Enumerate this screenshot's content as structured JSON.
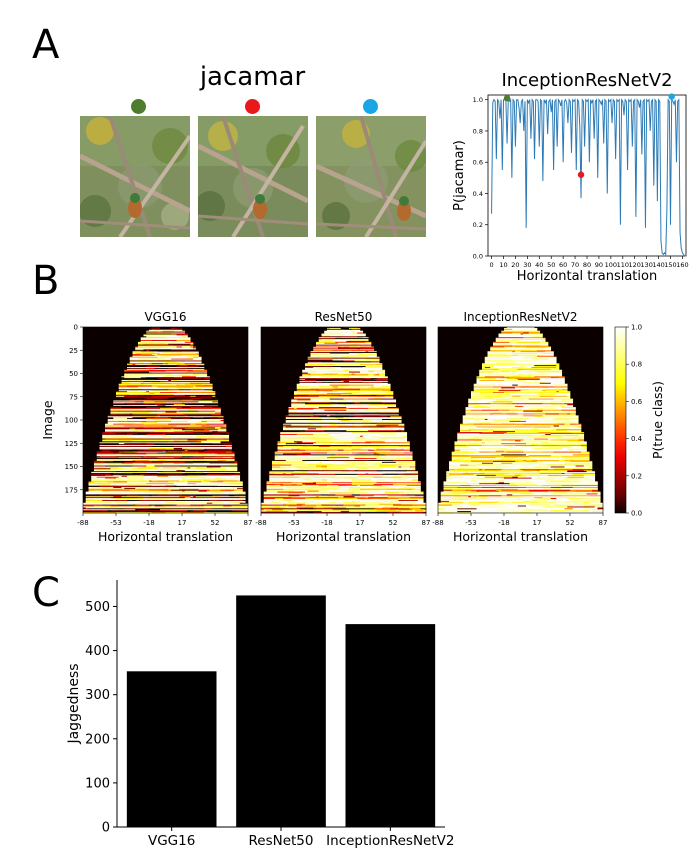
{
  "panels": {
    "a": "A",
    "b": "B",
    "c": "C"
  },
  "panel_a": {
    "image_title": "jacamar",
    "dot_colors": [
      "#4e7d2f",
      "#e8181c",
      "#1aa6e4"
    ]
  },
  "colors": {
    "line": "#2c7bb6",
    "bar": "#000000",
    "background_heatmap": "#0b0000"
  },
  "chart_data": [
    {
      "type": "line",
      "title": "InceptionResNetV2",
      "xlabel": "Horizontal translation",
      "ylabel": "P(jacamar)",
      "xlim": [
        -3,
        163
      ],
      "ylim": [
        0,
        1.03
      ],
      "xticks": [
        0,
        10,
        20,
        30,
        40,
        50,
        60,
        70,
        80,
        90,
        100,
        110,
        120,
        130,
        140,
        150,
        160
      ],
      "yticks": [
        0.0,
        0.2,
        0.4,
        0.6,
        0.8,
        1.0
      ],
      "series": [
        {
          "values": [
            0.27,
            0.98,
            1.0,
            0.99,
            0.62,
            1.0,
            0.99,
            0.88,
            1.0,
            0.55,
            1.0,
            1.0,
            0.99,
            0.72,
            1.0,
            0.99,
            1.0,
            0.5,
            1.0,
            0.99,
            0.7,
            1.0,
            1.0,
            0.95,
            0.85,
            0.99,
            1.0,
            0.8,
            0.99,
            0.18,
            1.0,
            0.98,
            1.0,
            0.75,
            1.0,
            0.99,
            0.62,
            1.0,
            1.0,
            0.99,
            0.7,
            1.0,
            0.99,
            0.48,
            1.0,
            0.98,
            1.0,
            0.78,
            0.99,
            1.0,
            0.92,
            1.0,
            0.55,
            0.99,
            1.0,
            0.7,
            1.0,
            0.99,
            0.96,
            1.0,
            0.6,
            0.99,
            1.0,
            0.98,
            0.85,
            1.0,
            0.99,
            0.66,
            1.0,
            0.99,
            1.0,
            0.55,
            1.0,
            0.99,
            0.82,
            0.37,
            1.0,
            0.99,
            0.7,
            1.0,
            0.99,
            1.0,
            0.6,
            1.0,
            0.98,
            1.0,
            0.75,
            0.99,
            1.0,
            0.5,
            1.0,
            0.99,
            0.97,
            1.0,
            0.72,
            1.0,
            0.99,
            0.4,
            1.0,
            0.99,
            1.0,
            0.85,
            1.0,
            0.99,
            0.62,
            1.0,
            0.99,
            1.0,
            0.2,
            1.0,
            0.99,
            0.9,
            1.0,
            0.99,
            0.55,
            1.0,
            0.99,
            1.0,
            0.7,
            0.99,
            1.0,
            0.25,
            1.0,
            0.99,
            0.95,
            1.0,
            0.65,
            0.99,
            1.0,
            0.18,
            1.0,
            0.99,
            1.0,
            0.8,
            0.99,
            1.0,
            0.45,
            1.0,
            0.99,
            0.35,
            1.0,
            0.99,
            0.1,
            0.02,
            0.01,
            0.02,
            0.01,
            0.3,
            1.0,
            0.99,
            0.2,
            1.0,
            0.99,
            0.97,
            1.0,
            0.6,
            0.99,
            1.0,
            0.15,
            0.05,
            0.02,
            0.01,
            0.0,
            0.0
          ]
        }
      ],
      "markers": [
        {
          "x": 13,
          "y": 1.01,
          "color": "#4e7d2f"
        },
        {
          "x": 75,
          "y": 0.52,
          "color": "#e8181c"
        },
        {
          "x": 151,
          "y": 1.02,
          "color": "#1aa6e4"
        }
      ]
    },
    {
      "type": "heatmap",
      "ylabel": "Image",
      "colorbar_label": "P(true class)",
      "colorbar_ticks": [
        0.0,
        0.2,
        0.4,
        0.6,
        0.8,
        1.0
      ],
      "yticks": [
        0,
        25,
        50,
        75,
        100,
        125,
        150,
        175
      ],
      "xticks": [
        "-88",
        "-53",
        "-18",
        "17",
        "52",
        "87"
      ],
      "xlabel": "Horizontal translation",
      "rows": 200,
      "x_range": [
        -88,
        87
      ],
      "panels": [
        {
          "title": "VGG16",
          "bright_frac": 0.45
        },
        {
          "title": "ResNet50",
          "bright_frac": 0.55
        },
        {
          "title": "InceptionResNetV2",
          "bright_frac": 0.75
        }
      ]
    },
    {
      "type": "bar",
      "categories": [
        "VGG16",
        "ResNet50",
        "InceptionResNetV2"
      ],
      "values": [
        353,
        525,
        460
      ],
      "ylabel": "Jaggedness",
      "ylim": [
        0,
        560
      ],
      "yticks": [
        0,
        100,
        200,
        300,
        400,
        500
      ]
    }
  ]
}
